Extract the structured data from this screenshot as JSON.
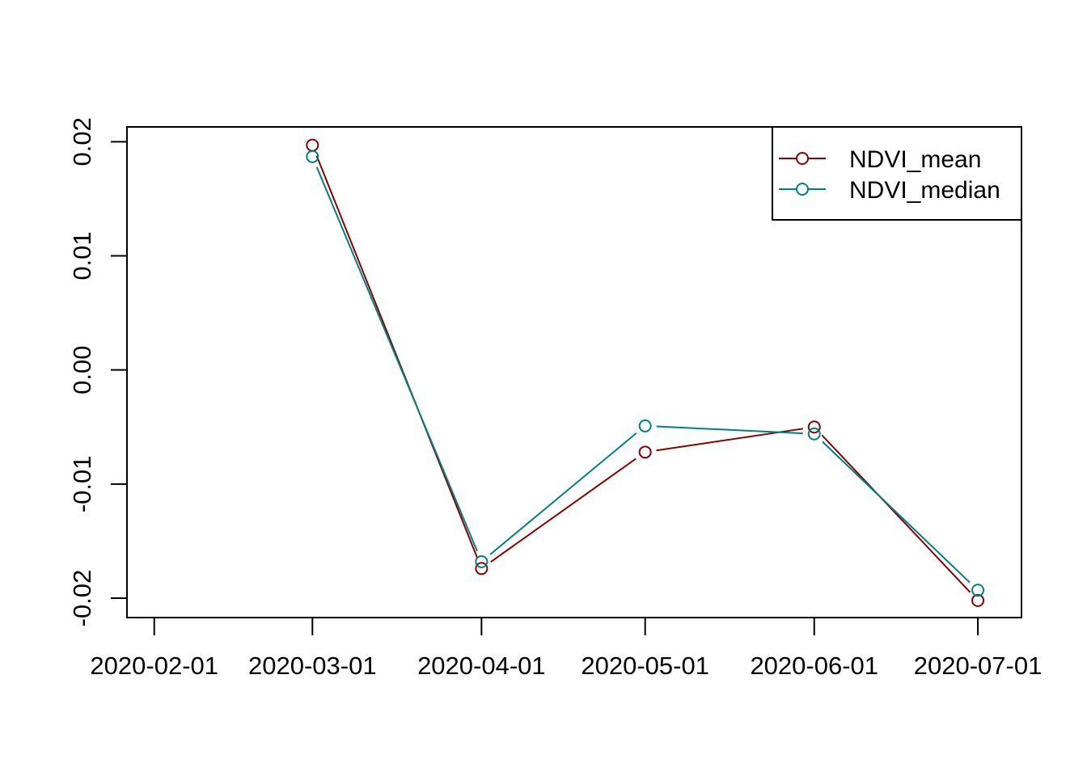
{
  "chart_data": {
    "type": "line",
    "title": "",
    "xlabel": "",
    "ylabel": "",
    "x_ticks": [
      "2020-02-01",
      "2020-03-01",
      "2020-04-01",
      "2020-05-01",
      "2020-06-01",
      "2020-07-01"
    ],
    "y_ticks": [
      "-0.02",
      "-0.01",
      "0.00",
      "0.01",
      "0.02"
    ],
    "y_tick_values": [
      -0.02,
      -0.01,
      0.0,
      0.01,
      0.02
    ],
    "ylim": [
      -0.0217,
      0.0213
    ],
    "xlim": [
      "2020-01-27",
      "2020-07-09"
    ],
    "legend_position": "top-right",
    "grid": false,
    "series": [
      {
        "name": "NDVI_mean",
        "color": "#8B0000",
        "x": [
          "2020-03-01",
          "2020-04-01",
          "2020-05-01",
          "2020-06-01",
          "2020-07-01"
        ],
        "values": [
          0.0197,
          -0.0174,
          -0.0072,
          -0.005,
          -0.0202
        ]
      },
      {
        "name": "NDVI_median",
        "color": "#008080",
        "x": [
          "2020-03-01",
          "2020-04-01",
          "2020-05-01",
          "2020-06-01",
          "2020-07-01"
        ],
        "values": [
          0.0187,
          -0.0168,
          -0.0049,
          -0.0056,
          -0.0193
        ]
      }
    ]
  }
}
